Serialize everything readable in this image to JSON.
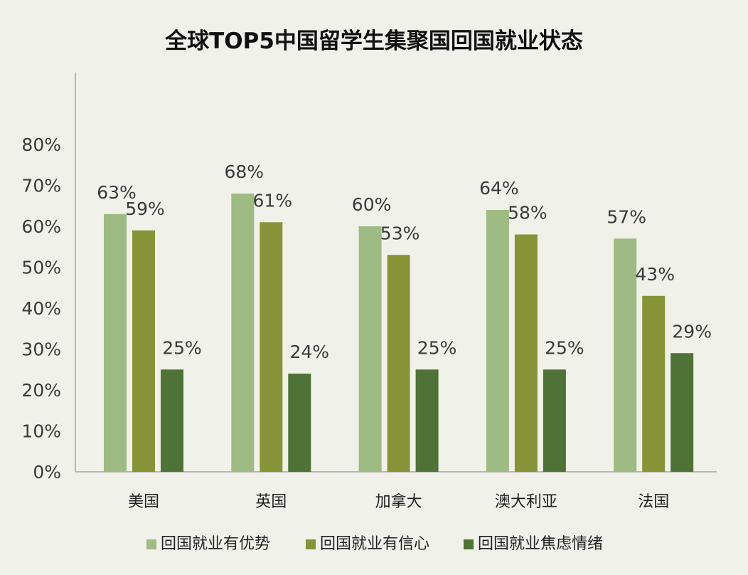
{
  "chart_data": {
    "type": "bar",
    "title": "全球TOP5中国留学生集聚国回国就业状态",
    "xlabel": "",
    "ylabel": "",
    "categories": [
      "美国",
      "英国",
      "加拿大",
      "澳大利亚",
      "法国"
    ],
    "series": [
      {
        "name": "回国就业有优势",
        "color": "#9dbb82",
        "values": [
          63,
          68,
          60,
          64,
          57
        ]
      },
      {
        "name": "回国就业有信心",
        "color": "#869437",
        "values": [
          59,
          61,
          53,
          58,
          43
        ]
      },
      {
        "name": "回国就业焦虑情绪",
        "color": "#4f7236",
        "values": [
          25,
          24,
          25,
          25,
          29
        ]
      }
    ],
    "ylim": [
      0,
      80
    ],
    "yticks": [
      0,
      10,
      20,
      30,
      40,
      50,
      60,
      70,
      80
    ],
    "value_suffix": "%",
    "grid": false,
    "legend_position": "bottom"
  }
}
